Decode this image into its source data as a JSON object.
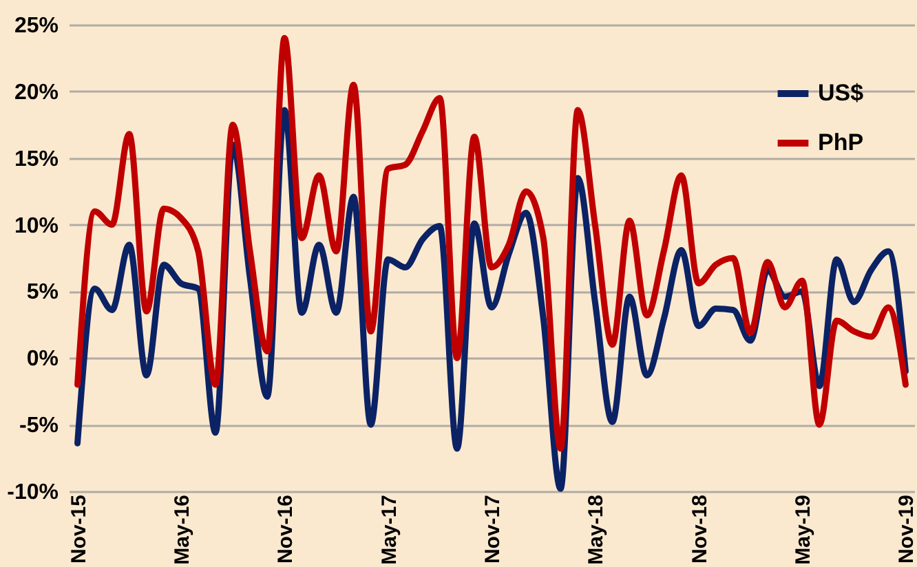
{
  "chart_data": {
    "type": "line",
    "categories": [
      "Nov-15",
      null,
      null,
      null,
      null,
      null,
      "May-16",
      null,
      null,
      null,
      null,
      null,
      "Nov-16",
      null,
      null,
      null,
      null,
      null,
      "May-17",
      null,
      null,
      null,
      null,
      null,
      "Nov-17",
      null,
      null,
      null,
      null,
      null,
      "May-18",
      null,
      null,
      null,
      null,
      null,
      "Nov-18",
      null,
      null,
      null,
      null,
      null,
      "May-19",
      null,
      null,
      null,
      null,
      null,
      "Nov-19"
    ],
    "series": [
      {
        "name": "US$",
        "color": "#0b2265",
        "values": [
          -6.4,
          5.2,
          3.6,
          8.5,
          -1.3,
          7,
          5.6,
          5.2,
          -5.6,
          16,
          6,
          -2.9,
          18.6,
          3.4,
          8.5,
          3.4,
          12.1,
          -5,
          7.4,
          6.8,
          8.9,
          9.9,
          -6.8,
          10.1,
          3.8,
          7.8,
          10.9,
          3,
          -9.8,
          13.5,
          4.2,
          -4.8,
          4.6,
          -1.3,
          3,
          8.1,
          2.4,
          3.7,
          3.6,
          1.3,
          6.6,
          4.6,
          5,
          -2.1,
          7.4,
          4.2,
          6.6,
          8,
          -1
        ]
      },
      {
        "name": "PhP",
        "color": "#c00000",
        "values": [
          -2,
          11,
          10,
          16.8,
          3.5,
          11.2,
          10.5,
          8,
          -2,
          17.5,
          8,
          0.5,
          24,
          9,
          13.7,
          8,
          20.5,
          2,
          14.2,
          14.5,
          17,
          19.5,
          0,
          16.6,
          6.8,
          8.5,
          12.5,
          9,
          -6.8,
          18.6,
          10,
          1,
          10.3,
          3.2,
          8.1,
          13.7,
          5.6,
          7,
          7.5,
          1.9,
          7.2,
          3.8,
          5.8,
          -5,
          2.8,
          2,
          1.6,
          3.8,
          -2
        ]
      }
    ],
    "ylim": [
      -10,
      25
    ],
    "yticks": [
      {
        "value": -10,
        "label": "-10%"
      },
      {
        "value": -5,
        "label": "-5%"
      },
      {
        "value": 0,
        "label": "0%"
      },
      {
        "value": 5,
        "label": "5%"
      },
      {
        "value": 10,
        "label": "10%"
      },
      {
        "value": 15,
        "label": "15%"
      },
      {
        "value": 20,
        "label": "20%"
      },
      {
        "value": 25,
        "label": "25%"
      }
    ],
    "grid": "y",
    "legend": "top right",
    "marker": "none",
    "line_style": "solid"
  }
}
